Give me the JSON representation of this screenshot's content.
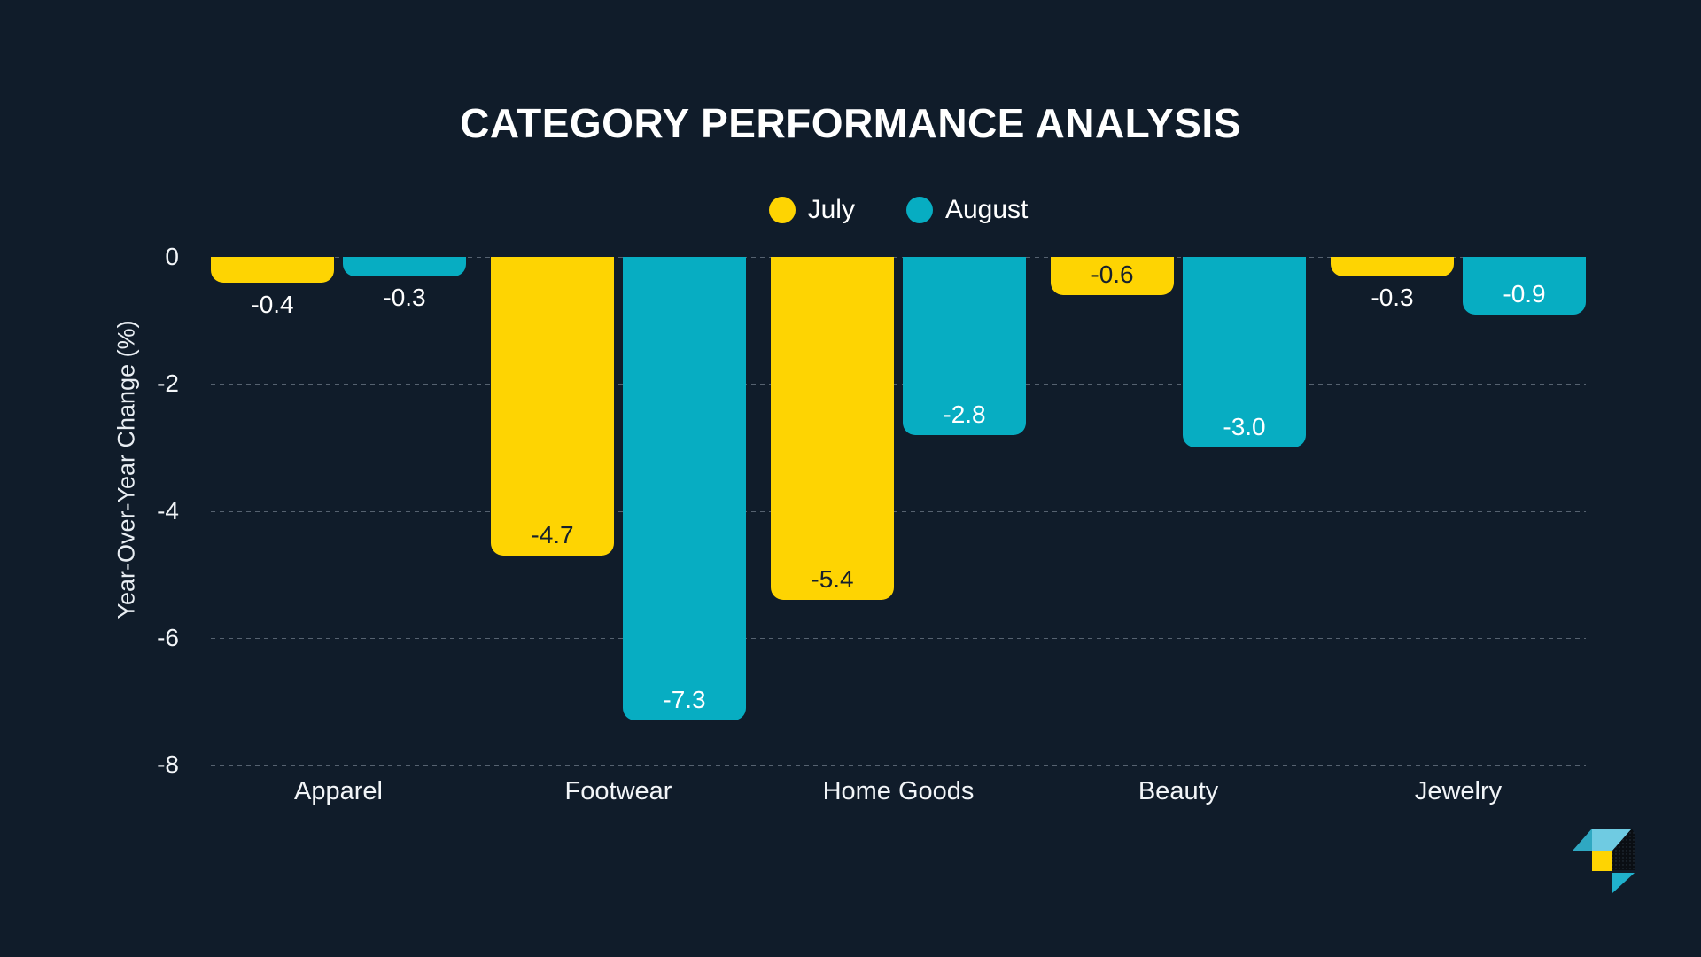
{
  "title": "CATEGORY PERFORMANCE ANALYSIS",
  "chart_data": {
    "type": "bar",
    "title": "CATEGORY PERFORMANCE ANALYSIS",
    "categories": [
      "Apparel",
      "Footwear",
      "Home Goods",
      "Beauty",
      "Jewelry"
    ],
    "series": [
      {
        "name": "July",
        "color": "#fed402",
        "values": [
          -0.4,
          -4.7,
          -5.4,
          -0.6,
          -0.3
        ]
      },
      {
        "name": "August",
        "color": "#07adc2",
        "values": [
          -0.3,
          -7.3,
          -2.8,
          -3.0,
          -0.9
        ]
      }
    ],
    "xlabel": "",
    "ylabel": "Year-Over-Year Change (%)",
    "ylim": [
      -8,
      0
    ],
    "yticks": [
      0,
      -2,
      -4,
      -6,
      -8
    ],
    "grid": true,
    "legend_position": "top-center",
    "value_label_decimals": 1
  },
  "colors": {
    "background": "#101c2a",
    "text": "#ffffff",
    "grid": "#aab6c4",
    "july": "#fed402",
    "august": "#07adc2",
    "label_on_yellow": "#15202e",
    "label_on_teal": "#ffffff"
  },
  "logo": {
    "name": "brand-logo-mark",
    "colors": {
      "light_blue": "#6fcbe2",
      "teal": "#2fa8c2",
      "cyan": "#20b1cd",
      "yellow": "#fed402",
      "dark": "#0a0e13",
      "dot": "#2a3743"
    }
  }
}
